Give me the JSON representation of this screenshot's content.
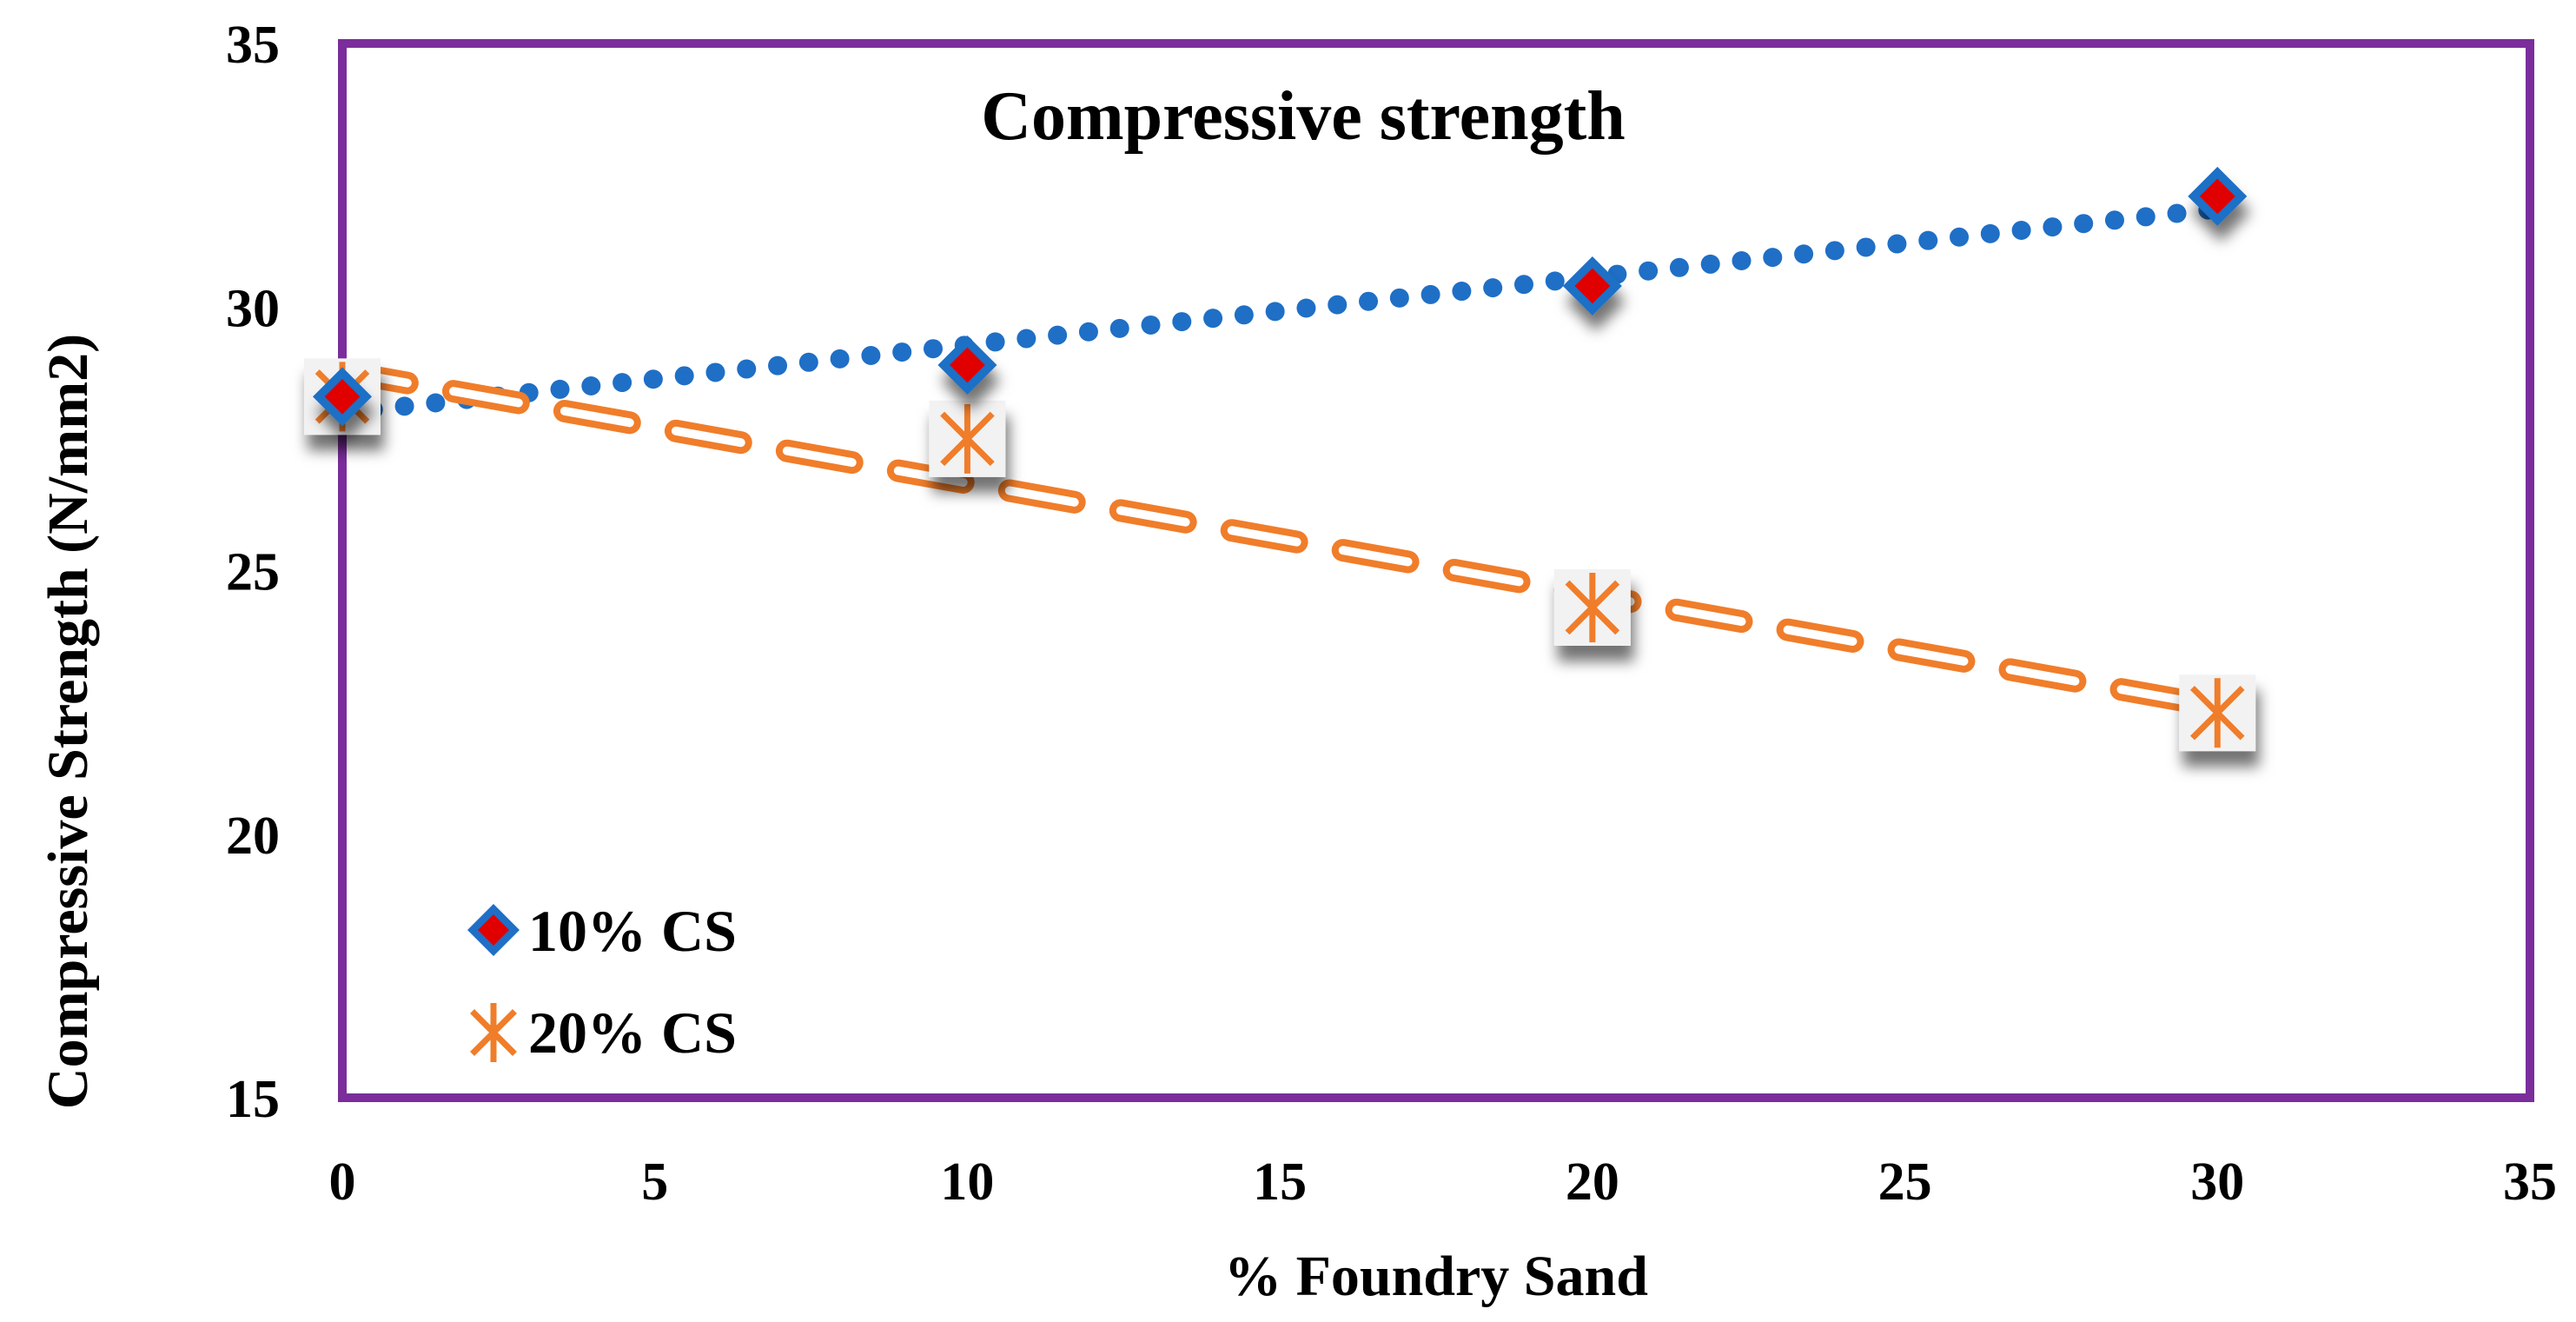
{
  "chart_data": {
    "type": "scatter",
    "title": "Compressive strength",
    "xlabel": "% Foundry Sand",
    "ylabel": "Compressive Strength (N/mm2)",
    "xlim": [
      0,
      35
    ],
    "ylim": [
      15,
      35
    ],
    "x_ticks": [
      "0",
      "5",
      "10",
      "15",
      "20",
      "25",
      "30",
      "35"
    ],
    "y_ticks": [
      "15",
      "20",
      "25",
      "30",
      "35"
    ],
    "grid": false,
    "legend_position": "bottom-left",
    "series": [
      {
        "name": "10% CS",
        "marker": "diamond",
        "line_style": "dotted",
        "color": "#1f6fc6",
        "fill": "#e00000",
        "x": [
          0,
          10,
          20,
          30
        ],
        "y": [
          28.3,
          28.9,
          30.4,
          32.1
        ]
      },
      {
        "name": "20% CS",
        "marker": "star",
        "line_style": "dashed",
        "color": "#f07d2a",
        "x": [
          0,
          10,
          20,
          30
        ],
        "y": [
          28.3,
          27.5,
          24.3,
          22.3
        ]
      }
    ],
    "plot_border_color": "#7b2d9b"
  }
}
